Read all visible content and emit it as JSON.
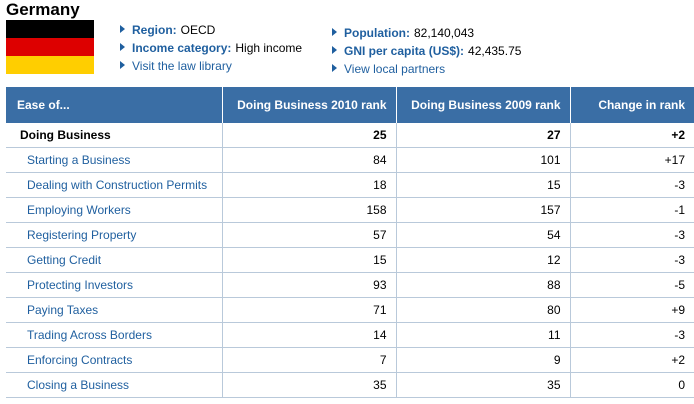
{
  "country": "Germany",
  "flag": {
    "colors": [
      "#000000",
      "#dd0000",
      "#ffce00"
    ]
  },
  "info": {
    "region_label": "Region:",
    "region_value": "OECD",
    "income_label": "Income category:",
    "income_value": "High income",
    "law_link": "Visit the law library",
    "population_label": "Population:",
    "population_value": "82,140,043",
    "gni_label": "GNI per capita (US$):",
    "gni_value": "42,435.75",
    "partners_link": "View local partners"
  },
  "table": {
    "headers": [
      "Ease of...",
      "Doing Business 2010 rank",
      "Doing Business 2009 rank",
      "Change in rank"
    ],
    "rows": [
      [
        "Doing Business",
        "25",
        "27",
        "+2"
      ],
      [
        "Starting a Business",
        "84",
        "101",
        "+17"
      ],
      [
        "Dealing with Construction Permits",
        "18",
        "15",
        "-3"
      ],
      [
        "Employing Workers",
        "158",
        "157",
        "-1"
      ],
      [
        "Registering Property",
        "57",
        "54",
        "-3"
      ],
      [
        "Getting Credit",
        "15",
        "12",
        "-3"
      ],
      [
        "Protecting Investors",
        "93",
        "88",
        "-5"
      ],
      [
        "Paying Taxes",
        "71",
        "80",
        "+9"
      ],
      [
        "Trading Across Borders",
        "14",
        "11",
        "-3"
      ],
      [
        "Enforcing Contracts",
        "7",
        "9",
        "+2"
      ],
      [
        "Closing a Business",
        "35",
        "35",
        "0"
      ]
    ]
  }
}
